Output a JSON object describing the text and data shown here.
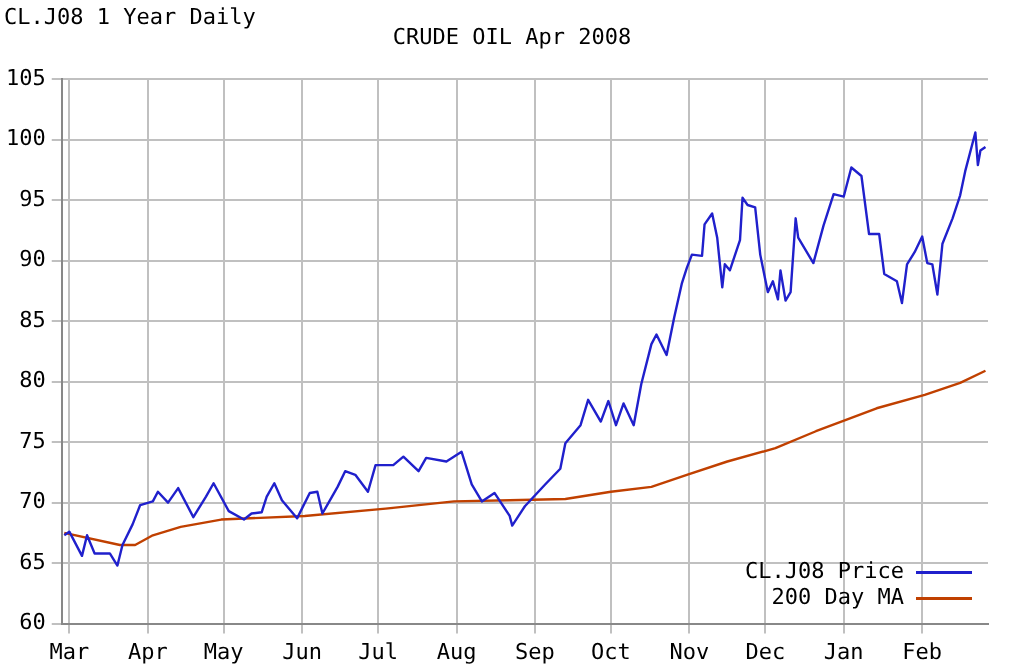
{
  "chart_data": {
    "type": "line",
    "title": "CRUDE OIL Apr 2008",
    "subtitle": "CL.J08 1 Year Daily",
    "xlim": [
      "2007-02-26",
      "2008-02-27"
    ],
    "xticks": [
      {
        "value": "2007-03-01",
        "label": "Mar"
      },
      {
        "value": "2007-04-01",
        "label": "Apr"
      },
      {
        "value": "2007-05-01",
        "label": "May"
      },
      {
        "value": "2007-06-01",
        "label": "Jun"
      },
      {
        "value": "2007-07-01",
        "label": "Jul"
      },
      {
        "value": "2007-08-01",
        "label": "Aug"
      },
      {
        "value": "2007-09-01",
        "label": "Sep"
      },
      {
        "value": "2007-10-01",
        "label": "Oct"
      },
      {
        "value": "2007-11-01",
        "label": "Nov"
      },
      {
        "value": "2007-12-01",
        "label": "Dec"
      },
      {
        "value": "2008-01-01",
        "label": "Jan"
      },
      {
        "value": "2008-02-01",
        "label": "Feb"
      }
    ],
    "ylim": [
      60,
      105
    ],
    "yticks": [
      60,
      65,
      70,
      75,
      80,
      85,
      90,
      95,
      100,
      105
    ],
    "grid": true,
    "legend": "bottom right",
    "marker": "none",
    "line_style": "solid",
    "series": [
      {
        "name": "CL.J08 Price",
        "color": "#2020cc",
        "x": [
          "2007-02-27",
          "2007-03-01",
          "2007-03-06",
          "2007-03-08",
          "2007-03-11",
          "2007-03-17",
          "2007-03-20",
          "2007-03-22",
          "2007-03-26",
          "2007-03-29",
          "2007-04-03",
          "2007-04-05",
          "2007-04-09",
          "2007-04-13",
          "2007-04-19",
          "2007-04-24",
          "2007-04-27",
          "2007-05-03",
          "2007-05-09",
          "2007-05-12",
          "2007-05-16",
          "2007-05-18",
          "2007-05-21",
          "2007-05-24",
          "2007-05-30",
          "2007-06-04",
          "2007-06-07",
          "2007-06-09",
          "2007-06-15",
          "2007-06-18",
          "2007-06-22",
          "2007-06-27",
          "2007-06-30",
          "2007-07-07",
          "2007-07-11",
          "2007-07-17",
          "2007-07-20",
          "2007-07-28",
          "2007-08-03",
          "2007-08-07",
          "2007-08-11",
          "2007-08-16",
          "2007-08-22",
          "2007-08-23",
          "2007-08-28",
          "2007-09-05",
          "2007-09-11",
          "2007-09-13",
          "2007-09-19",
          "2007-09-22",
          "2007-09-27",
          "2007-09-30",
          "2007-10-03",
          "2007-10-06",
          "2007-10-10",
          "2007-10-13",
          "2007-10-17",
          "2007-10-19",
          "2007-10-23",
          "2007-10-26",
          "2007-10-29",
          "2007-10-31",
          "2007-11-02",
          "2007-11-06",
          "2007-11-07",
          "2007-11-10",
          "2007-11-12",
          "2007-11-14",
          "2007-11-15",
          "2007-11-17",
          "2007-11-21",
          "2007-11-22",
          "2007-11-24",
          "2007-11-27",
          "2007-11-29",
          "2007-12-02",
          "2007-12-04",
          "2007-12-06",
          "2007-12-07",
          "2007-12-09",
          "2007-12-11",
          "2007-12-13",
          "2007-12-14",
          "2007-12-20",
          "2007-12-24",
          "2007-12-28",
          "2008-01-01",
          "2008-01-04",
          "2008-01-08",
          "2008-01-11",
          "2008-01-15",
          "2008-01-17",
          "2008-01-22",
          "2008-01-24",
          "2008-01-26",
          "2008-01-29",
          "2008-02-01",
          "2008-02-03",
          "2008-02-05",
          "2008-02-07",
          "2008-02-09",
          "2008-02-13",
          "2008-02-16",
          "2008-02-18",
          "2008-02-22",
          "2008-02-23",
          "2008-02-24",
          "2008-02-26"
        ],
        "values": [
          67.3,
          67.6,
          65.6,
          67.3,
          65.8,
          65.8,
          64.8,
          66.5,
          68.2,
          69.8,
          70.1,
          70.9,
          70.0,
          71.2,
          68.8,
          70.5,
          71.6,
          69.3,
          68.6,
          69.1,
          69.2,
          70.5,
          71.6,
          70.2,
          68.7,
          70.8,
          70.9,
          69.1,
          71.3,
          72.6,
          72.3,
          70.9,
          73.1,
          73.1,
          73.8,
          72.6,
          73.7,
          73.4,
          74.2,
          71.5,
          70.1,
          70.8,
          68.9,
          68.1,
          69.7,
          71.5,
          72.8,
          74.9,
          76.4,
          78.5,
          76.7,
          78.4,
          76.4,
          78.2,
          76.4,
          79.8,
          83.1,
          83.9,
          82.2,
          85.3,
          88.1,
          89.4,
          90.5,
          90.4,
          93.0,
          93.9,
          91.9,
          87.8,
          89.7,
          89.2,
          91.7,
          95.2,
          94.6,
          94.4,
          90.5,
          87.4,
          88.3,
          86.8,
          89.2,
          86.7,
          87.4,
          93.5,
          91.9,
          89.8,
          92.9,
          95.5,
          95.3,
          97.7,
          97.0,
          92.2,
          92.2,
          88.9,
          88.3,
          86.5,
          89.7,
          90.7,
          92.0,
          89.8,
          89.7,
          87.2,
          91.4,
          93.5,
          95.4,
          97.4,
          100.6,
          97.9,
          99.1,
          99.4
        ]
      },
      {
        "name": "200 Day MA",
        "color": "#c04000",
        "x": [
          "2007-02-27",
          "2007-03-21",
          "2007-03-27",
          "2007-04-03",
          "2007-04-14",
          "2007-04-30",
          "2007-06-02",
          "2007-07-04",
          "2007-07-31",
          "2007-08-22",
          "2007-09-13",
          "2007-10-01",
          "2007-10-17",
          "2007-10-31",
          "2007-11-16",
          "2007-12-05",
          "2007-12-21",
          "2008-01-04",
          "2008-01-14",
          "2008-02-02",
          "2008-02-16",
          "2008-02-26"
        ],
        "values": [
          67.5,
          66.5,
          66.5,
          67.3,
          68.0,
          68.6,
          68.9,
          69.5,
          70.1,
          70.2,
          70.3,
          70.9,
          71.3,
          72.3,
          73.4,
          74.5,
          75.9,
          77.0,
          77.8,
          78.9,
          79.9,
          80.9
        ]
      }
    ]
  }
}
